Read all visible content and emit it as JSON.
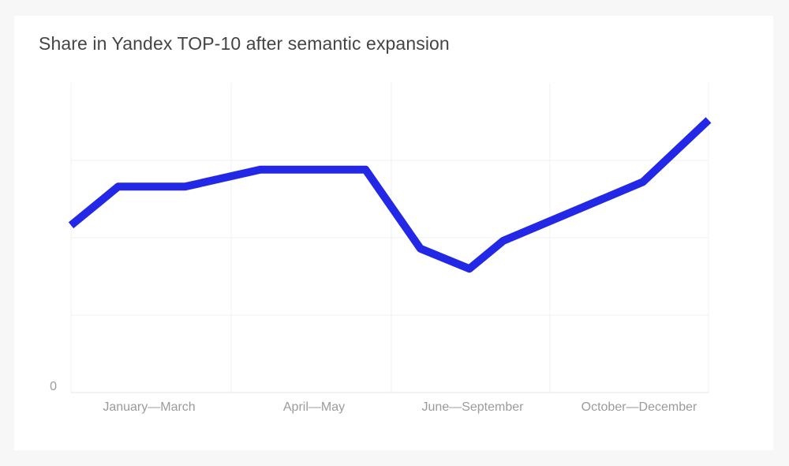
{
  "page": {
    "background_color": "#f7f7f8",
    "card_background_color": "#ffffff"
  },
  "chart_data": {
    "type": "line",
    "title": "Share in Yandex TOP-10 after semantic expansion",
    "xlabel": "",
    "ylabel": "",
    "x_tick_labels": [
      "January—March",
      "April—May",
      "June—September",
      "October—December"
    ],
    "y_tick_labels": [
      "0"
    ],
    "ylim": [
      0,
      100
    ],
    "grid": true,
    "legend": false,
    "y_axis_note": "Only the 0 tick is labeled; faint horizontal gridlines sit at roughly 25, 50 and 75 on the implied 0-100 scale.",
    "series": [
      {
        "name": "Share in Yandex TOP-10",
        "color": "#2328e6",
        "line_width": 10,
        "points": [
          {
            "x_frac": 0.0,
            "value": 54
          },
          {
            "x_frac": 0.074,
            "value": 66.5
          },
          {
            "x_frac": 0.179,
            "value": 66.5
          },
          {
            "x_frac": 0.297,
            "value": 72
          },
          {
            "x_frac": 0.462,
            "value": 72
          },
          {
            "x_frac": 0.548,
            "value": 46.5
          },
          {
            "x_frac": 0.625,
            "value": 40
          },
          {
            "x_frac": 0.678,
            "value": 49
          },
          {
            "x_frac": 0.897,
            "value": 68
          },
          {
            "x_frac": 1.0,
            "value": 88
          }
        ]
      }
    ],
    "colors": {
      "gridline": "#f1f1f2",
      "axis_line": "#e5e5e7",
      "tick_label": "#9b9b9e",
      "title": "#454547"
    }
  }
}
